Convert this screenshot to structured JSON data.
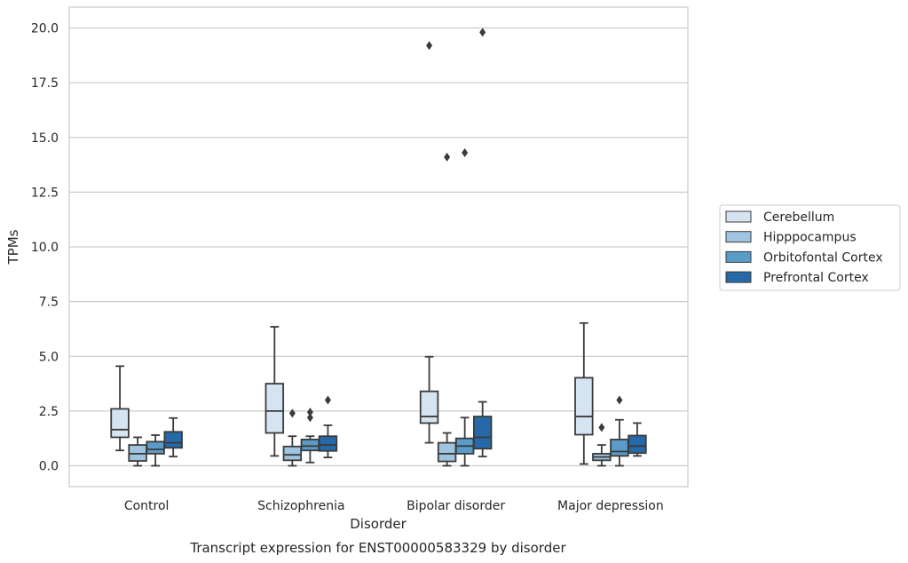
{
  "chart_data": {
    "type": "box",
    "title": "",
    "caption": "Transcript expression for ENST00000583329 by disorder",
    "xlabel": "Disorder",
    "ylabel": "TPMs",
    "ylim": [
      -0.95,
      20.85
    ],
    "yticks": [
      "0.0",
      "2.5",
      "5.0",
      "7.5",
      "10.0",
      "12.5",
      "15.0",
      "17.5",
      "20.0"
    ],
    "categories": [
      "Control",
      "Schizophrenia",
      "Bipolar disorder",
      "Major depression"
    ],
    "grid": "horizontal",
    "legend_position": "right",
    "series": [
      {
        "name": "Cerebellum",
        "color": "#d6e4f2",
        "boxes": [
          {
            "whisker_low": 0.7,
            "q1": 1.3,
            "median": 1.65,
            "q3": 2.6,
            "whisker_high": 4.55,
            "outliers": []
          },
          {
            "whisker_low": 0.45,
            "q1": 1.5,
            "median": 2.5,
            "q3": 3.75,
            "whisker_high": 6.35,
            "outliers": []
          },
          {
            "whisker_low": 1.05,
            "q1": 1.95,
            "median": 2.25,
            "q3": 3.4,
            "whisker_high": 4.98,
            "outliers": [
              19.2
            ]
          },
          {
            "whisker_low": 0.08,
            "q1": 1.42,
            "median": 2.25,
            "q3": 4.02,
            "whisker_high": 6.52,
            "outliers": []
          }
        ]
      },
      {
        "name": "Hipppocampus",
        "color": "#9ec4df",
        "boxes": [
          {
            "whisker_low": 0.0,
            "q1": 0.22,
            "median": 0.55,
            "q3": 0.95,
            "whisker_high": 1.3,
            "outliers": []
          },
          {
            "whisker_low": 0.0,
            "q1": 0.25,
            "median": 0.5,
            "q3": 0.88,
            "whisker_high": 1.35,
            "outliers": [
              2.4
            ]
          },
          {
            "whisker_low": 0.0,
            "q1": 0.2,
            "median": 0.55,
            "q3": 1.05,
            "whisker_high": 1.5,
            "outliers": [
              14.1
            ]
          },
          {
            "whisker_low": 0.0,
            "q1": 0.25,
            "median": 0.4,
            "q3": 0.55,
            "whisker_high": 0.95,
            "outliers": [
              1.75
            ]
          }
        ]
      },
      {
        "name": "Orbitofontal Cortex",
        "color": "#5a9cc9",
        "boxes": [
          {
            "whisker_low": 0.0,
            "q1": 0.55,
            "median": 0.75,
            "q3": 1.1,
            "whisker_high": 1.4,
            "outliers": []
          },
          {
            "whisker_low": 0.15,
            "q1": 0.7,
            "median": 0.9,
            "q3": 1.2,
            "whisker_high": 1.35,
            "outliers": [
              2.2,
              2.45
            ]
          },
          {
            "whisker_low": 0.0,
            "q1": 0.55,
            "median": 0.9,
            "q3": 1.25,
            "whisker_high": 2.2,
            "outliers": [
              14.3
            ]
          },
          {
            "whisker_low": 0.0,
            "q1": 0.45,
            "median": 0.65,
            "q3": 1.2,
            "whisker_high": 2.1,
            "outliers": [
              3.0
            ]
          }
        ]
      },
      {
        "name": "Prefrontal Cortex",
        "color": "#2569a8",
        "boxes": [
          {
            "whisker_low": 0.42,
            "q1": 0.82,
            "median": 1.05,
            "q3": 1.55,
            "whisker_high": 2.18,
            "outliers": []
          },
          {
            "whisker_low": 0.38,
            "q1": 0.68,
            "median": 0.95,
            "q3": 1.35,
            "whisker_high": 1.85,
            "outliers": [
              3.0
            ]
          },
          {
            "whisker_low": 0.42,
            "q1": 0.78,
            "median": 1.3,
            "q3": 2.25,
            "whisker_high": 2.92,
            "outliers": [
              19.8
            ]
          },
          {
            "whisker_low": 0.45,
            "q1": 0.58,
            "median": 0.9,
            "q3": 1.38,
            "whisker_high": 1.95,
            "outliers": []
          }
        ]
      }
    ]
  }
}
